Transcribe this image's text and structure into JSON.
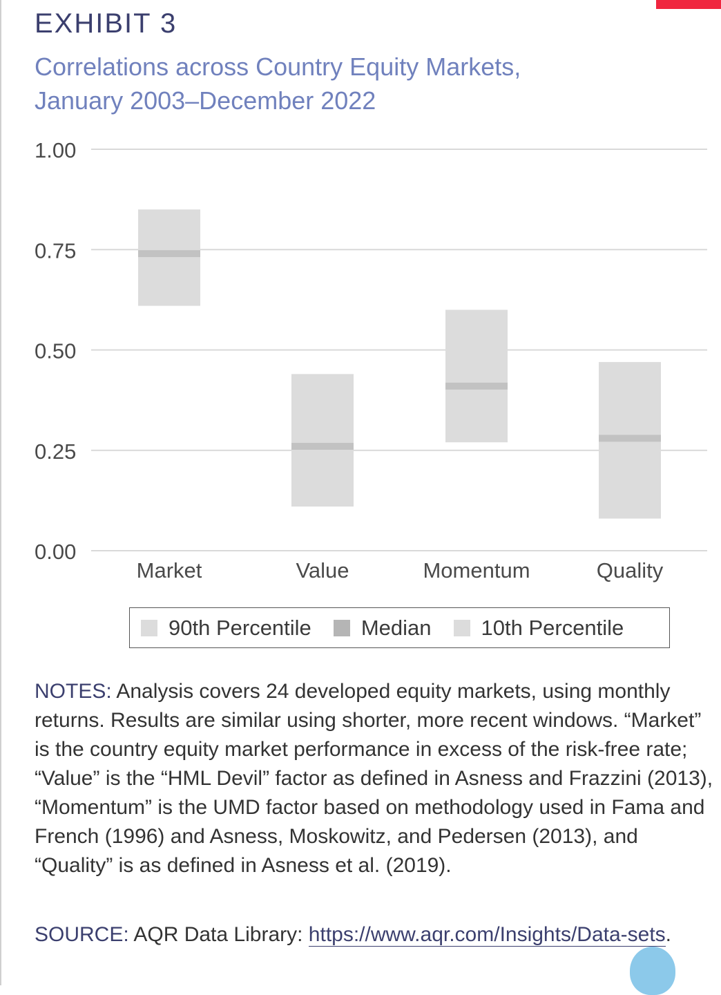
{
  "header": {
    "exhibit": "EXHIBIT 3",
    "subtitle_line1": "Correlations across Country Equity Markets,",
    "subtitle_line2": "January 2003–December 2022"
  },
  "chart_data": {
    "type": "range",
    "title": "",
    "xlabel": "",
    "ylabel": "",
    "ylim": [
      0,
      1
    ],
    "yticks": [
      1.0,
      0.75,
      0.5,
      0.25,
      0.0
    ],
    "ytick_labels": [
      "1.00",
      "0.75",
      "0.50",
      "0.25",
      "0.00"
    ],
    "grid": true,
    "categories": [
      "Market",
      "Value",
      "Momentum",
      "Quality"
    ],
    "series": [
      {
        "name": "90th Percentile",
        "values": [
          0.85,
          0.44,
          0.6,
          0.47
        ]
      },
      {
        "name": "Median",
        "values": [
          0.74,
          0.26,
          0.41,
          0.28
        ]
      },
      {
        "name": "10th Percentile",
        "values": [
          0.61,
          0.11,
          0.27,
          0.08
        ]
      }
    ],
    "colors": {
      "range": "#dcdcdc",
      "median": "#c2c2c2",
      "grid": "#d9d9d9"
    },
    "legend_position": "bottom"
  },
  "legend": {
    "items": [
      {
        "label": "90th Percentile",
        "color": "#dcdcdc"
      },
      {
        "label": "Median",
        "color": "#b5b5b5"
      },
      {
        "label": "10th Percentile",
        "color": "#dcdcdc"
      }
    ]
  },
  "notes": {
    "label": "NOTES:",
    "text": " Analysis covers 24 developed equity markets, using monthly returns. Results are similar using shorter, more recent windows. “Market” is the country equity market performance in excess of the risk-free rate; “Value” is the “HML Devil” factor as defined in Asness and Frazzini (2013), “Momentum” is the UMD factor based on methodology used in Fama and French (1996) and Asness, Moskowitz, and Pedersen (2013), and “Quality” is as defined in Asness et al. (2019)."
  },
  "source": {
    "label": "SOURCE:",
    "text": " AQR Data Library: ",
    "link": "https://www.aqr.com/Insights/Data-sets",
    "trailing": "."
  }
}
